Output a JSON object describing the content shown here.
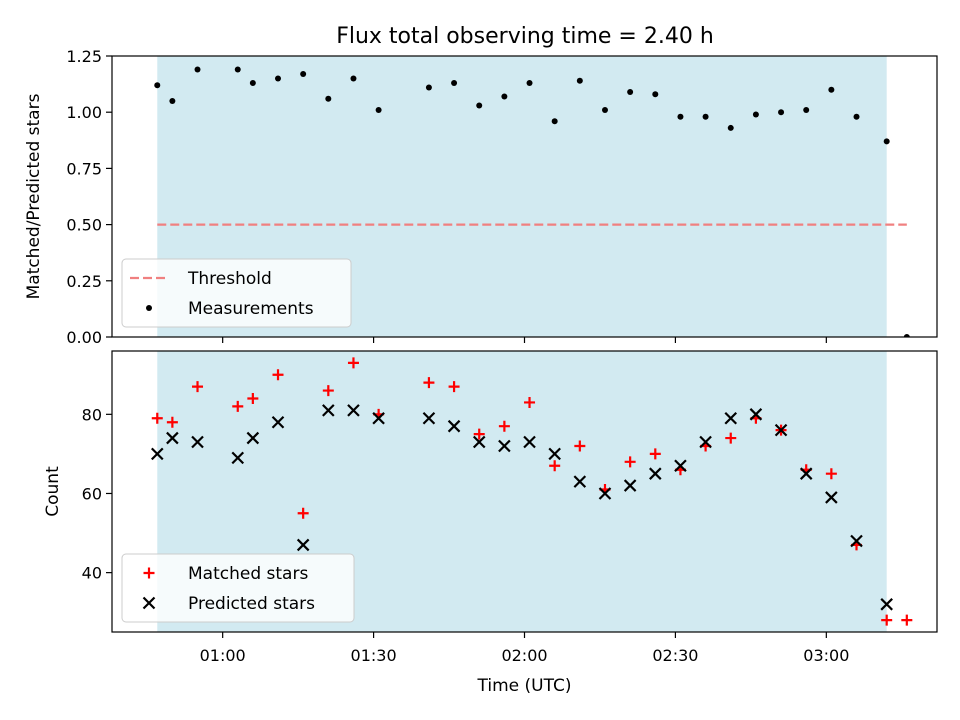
{
  "title": "Flux total observing time = 2.40 h",
  "colors": {
    "observing_band": "#add8e6",
    "threshold": "#f08080",
    "measurements": "#000000",
    "matched": "#ff0000",
    "predicted": "#000000"
  },
  "chart_data": [
    {
      "type": "scatter",
      "ylabel": "Matched/Predicted stars",
      "ylim": [
        0.0,
        1.25
      ],
      "xlim": [
        "00:38",
        "03:22"
      ],
      "y_ticks": [
        "0.00",
        "0.25",
        "0.50",
        "0.75",
        "1.00",
        "1.25"
      ],
      "x_ticklabels_shown": false,
      "observing_band": {
        "start": "00:47",
        "end": "03:12"
      },
      "threshold": {
        "name": "Threshold",
        "value": 0.5,
        "style": "dashed"
      },
      "legend": {
        "placement": "lower-left",
        "entries": [
          "Threshold",
          "Measurements"
        ]
      },
      "series": [
        {
          "name": "Measurements",
          "marker": "dot",
          "x": [
            "00:47",
            "00:50",
            "00:55",
            "01:03",
            "01:06",
            "01:11",
            "01:16",
            "01:21",
            "01:26",
            "01:31",
            "01:41",
            "01:46",
            "01:51",
            "01:56",
            "02:01",
            "02:06",
            "02:11",
            "02:16",
            "02:21",
            "02:26",
            "02:31",
            "02:36",
            "02:41",
            "02:46",
            "02:51",
            "02:56",
            "03:01",
            "03:06",
            "03:12",
            "03:16"
          ],
          "y": [
            1.12,
            1.05,
            1.19,
            1.19,
            1.13,
            1.15,
            1.17,
            1.06,
            1.15,
            1.01,
            1.11,
            1.13,
            1.03,
            1.07,
            1.13,
            0.96,
            1.14,
            1.01,
            1.09,
            1.08,
            0.98,
            0.98,
            0.93,
            0.99,
            1.0,
            1.01,
            1.1,
            0.98,
            0.87,
            0.0
          ]
        }
      ]
    },
    {
      "type": "scatter",
      "ylabel": "Count",
      "xlabel": "Time (UTC)",
      "ylim": [
        25,
        96
      ],
      "xlim": [
        "00:38",
        "03:22"
      ],
      "y_ticks": [
        "40",
        "60",
        "80"
      ],
      "x_ticks": [
        "01:00",
        "01:30",
        "02:00",
        "02:30",
        "03:00"
      ],
      "observing_band": {
        "start": "00:47",
        "end": "03:12"
      },
      "legend": {
        "placement": "lower-left",
        "entries": [
          "Matched stars",
          "Predicted stars"
        ]
      },
      "series": [
        {
          "name": "Matched stars",
          "marker": "plus",
          "x": [
            "00:47",
            "00:50",
            "00:55",
            "01:03",
            "01:06",
            "01:11",
            "01:16",
            "01:21",
            "01:26",
            "01:31",
            "01:41",
            "01:46",
            "01:51",
            "01:56",
            "02:01",
            "02:06",
            "02:11",
            "02:16",
            "02:21",
            "02:26",
            "02:31",
            "02:36",
            "02:41",
            "02:46",
            "02:51",
            "02:56",
            "03:01",
            "03:06",
            "03:12",
            "03:16"
          ],
          "y": [
            79,
            78,
            87,
            82,
            84,
            90,
            55,
            86,
            93,
            80,
            88,
            87,
            75,
            77,
            83,
            67,
            72,
            61,
            68,
            70,
            66,
            72,
            74,
            79,
            76,
            66,
            65,
            47,
            28,
            28
          ]
        },
        {
          "name": "Predicted stars",
          "marker": "x",
          "x": [
            "00:47",
            "00:50",
            "00:55",
            "01:03",
            "01:06",
            "01:11",
            "01:16",
            "01:21",
            "01:26",
            "01:31",
            "01:41",
            "01:46",
            "01:51",
            "01:56",
            "02:01",
            "02:06",
            "02:11",
            "02:16",
            "02:21",
            "02:26",
            "02:31",
            "02:36",
            "02:41",
            "02:46",
            "02:51",
            "02:56",
            "03:01",
            "03:06",
            "03:12"
          ],
          "y": [
            70,
            74,
            73,
            69,
            74,
            78,
            47,
            81,
            81,
            79,
            79,
            77,
            73,
            72,
            73,
            70,
            63,
            60,
            62,
            65,
            67,
            73,
            79,
            80,
            76,
            65,
            59,
            48,
            32
          ]
        }
      ]
    }
  ]
}
